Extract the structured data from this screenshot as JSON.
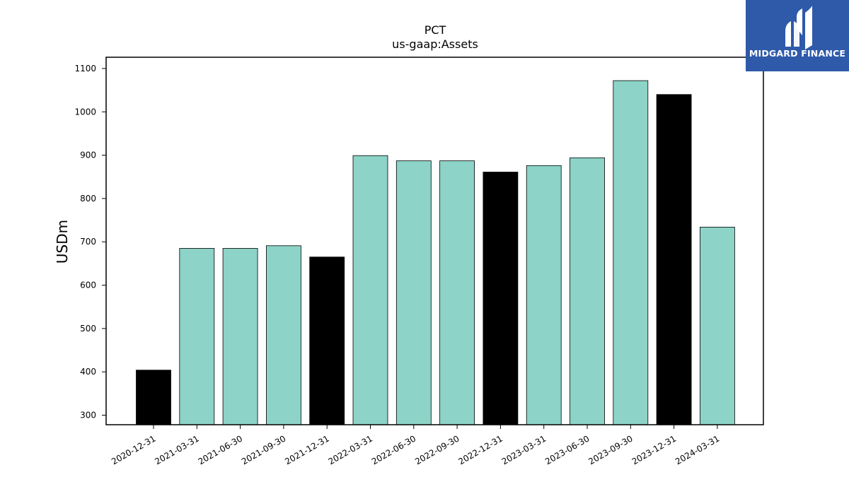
{
  "logo": {
    "text": "MIDGARD FINANCE",
    "background_color": "#2f5aaa"
  },
  "chart_data": {
    "type": "bar",
    "title": "PCT",
    "subtitle": "us-gaap:Assets",
    "xlabel": "",
    "ylabel": "USDm",
    "ylim": [
      278,
      1126
    ],
    "yticks": [
      300,
      400,
      500,
      600,
      700,
      800,
      900,
      1000,
      1100
    ],
    "grid": false,
    "categories": [
      "2020-12-31",
      "2021-03-31",
      "2021-06-30",
      "2021-09-30",
      "2021-12-31",
      "2022-03-31",
      "2022-06-30",
      "2022-09-30",
      "2022-12-31",
      "2023-03-31",
      "2023-06-30",
      "2023-09-30",
      "2023-12-31",
      "2024-03-31"
    ],
    "values": [
      404,
      685,
      685,
      691,
      665,
      899,
      887,
      887,
      861,
      876,
      894,
      1072,
      1040,
      734
    ],
    "bar_colors": [
      "#000000",
      "#8dd3c7",
      "#8dd3c7",
      "#8dd3c7",
      "#000000",
      "#8dd3c7",
      "#8dd3c7",
      "#8dd3c7",
      "#000000",
      "#8dd3c7",
      "#8dd3c7",
      "#8dd3c7",
      "#000000",
      "#8dd3c7"
    ]
  }
}
